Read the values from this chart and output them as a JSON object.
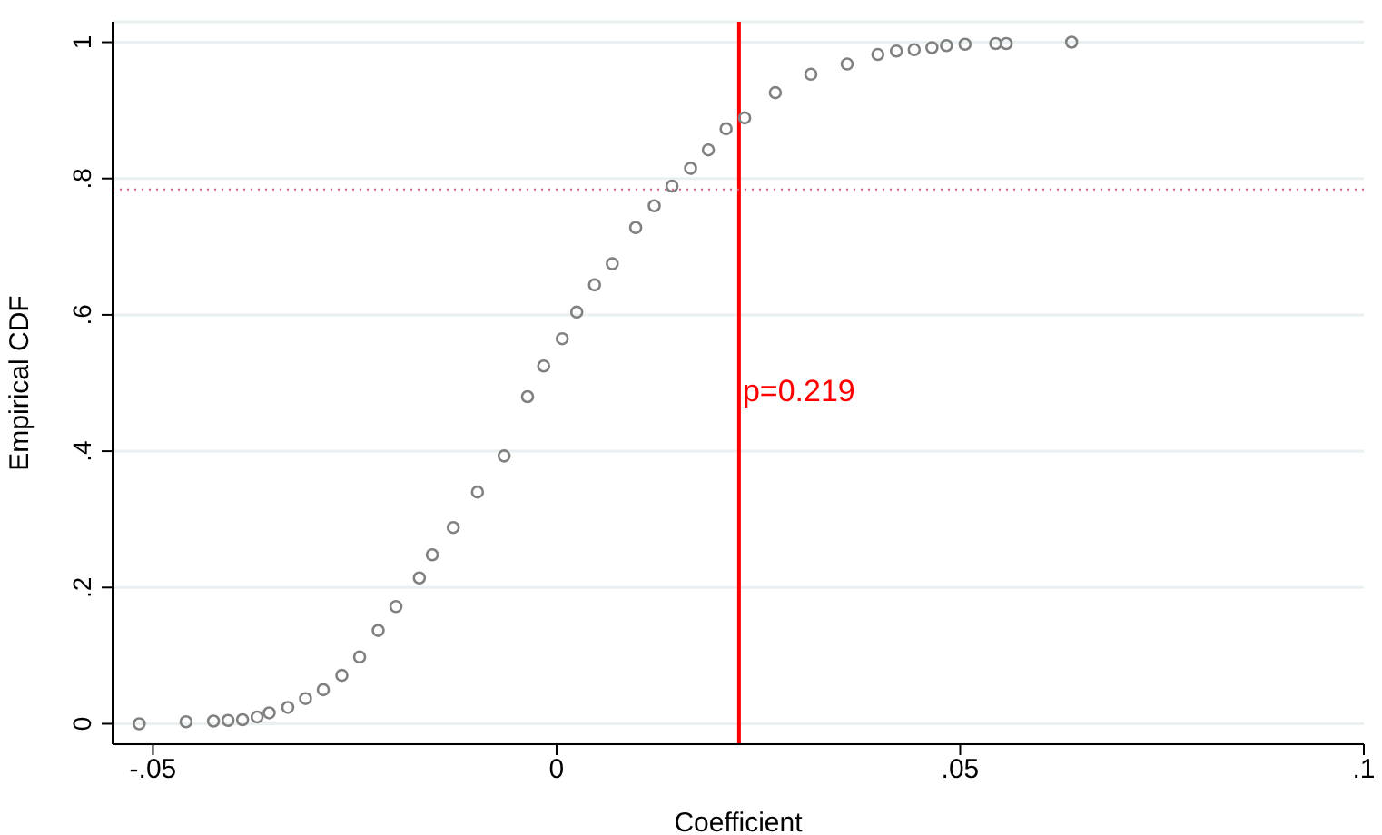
{
  "chart_data": {
    "type": "scatter",
    "xlabel": "Coefficient",
    "ylabel": "Empirical CDF",
    "x": [
      -0.0517,
      -0.0459,
      -0.0425,
      -0.0407,
      -0.0389,
      -0.0371,
      -0.0356,
      -0.0333,
      -0.0311,
      -0.0289,
      -0.0266,
      -0.0244,
      -0.0221,
      -0.0199,
      -0.017,
      -0.0154,
      -0.0128,
      -0.0098,
      -0.0065,
      -0.0036,
      -0.0016,
      0.0007,
      0.0025,
      0.0047,
      0.0069,
      0.0098,
      0.0121,
      0.0143,
      0.0166,
      0.0188,
      0.021,
      0.0233,
      0.0271,
      0.0315,
      0.036,
      0.0398,
      0.0421,
      0.0443,
      0.0465,
      0.0483,
      0.0506,
      0.0544,
      0.0557,
      0.0638
    ],
    "series": [
      {
        "color": "#808080",
        "values": [
          0,
          0.003,
          0.004,
          0.005,
          0.006,
          0.01,
          0.016,
          0.024,
          0.037,
          0.05,
          0.071,
          0.098,
          0.137,
          0.172,
          0.214,
          0.248,
          0.288,
          0.34,
          0.393,
          0.48,
          0.525,
          0.565,
          0.604,
          0.644,
          0.675,
          0.728,
          0.76,
          0.789,
          0.815,
          0.842,
          0.873,
          0.889,
          0.926,
          0.953,
          0.968,
          0.982,
          0.987,
          0.989,
          0.992,
          0.995,
          0.997,
          0.998,
          0.998,
          1.0
        ]
      }
    ],
    "xlim": [
      -0.055,
      0.1
    ],
    "xticks": [
      {
        "value": -0.05,
        "label": "-.05"
      },
      0,
      {
        "value": 0.05,
        "label": ".05"
      },
      {
        "value": 0.1,
        "label": ".1"
      }
    ],
    "ylim": [
      -0.03,
      1.03
    ],
    "yticks": [
      0,
      {
        "value": 0.2,
        "label": ".2"
      },
      {
        "value": 0.4,
        "label": ".4"
      },
      {
        "value": 0.6,
        "label": ".6"
      },
      {
        "value": 0.8,
        "label": ".8"
      },
      1
    ],
    "grid": "y",
    "marker": "circle",
    "legend": false,
    "annotations": [
      {
        "text": "p=0.219",
        "x": 0.0226,
        "y": 0.49
      }
    ],
    "ref_lines": [
      {
        "axis": "x",
        "value": 0.0226,
        "color": "#ff0000",
        "line_style": "solid"
      },
      {
        "axis": "y",
        "value": 0.784,
        "color": "#e0607e",
        "line_style": "dotted"
      }
    ]
  }
}
